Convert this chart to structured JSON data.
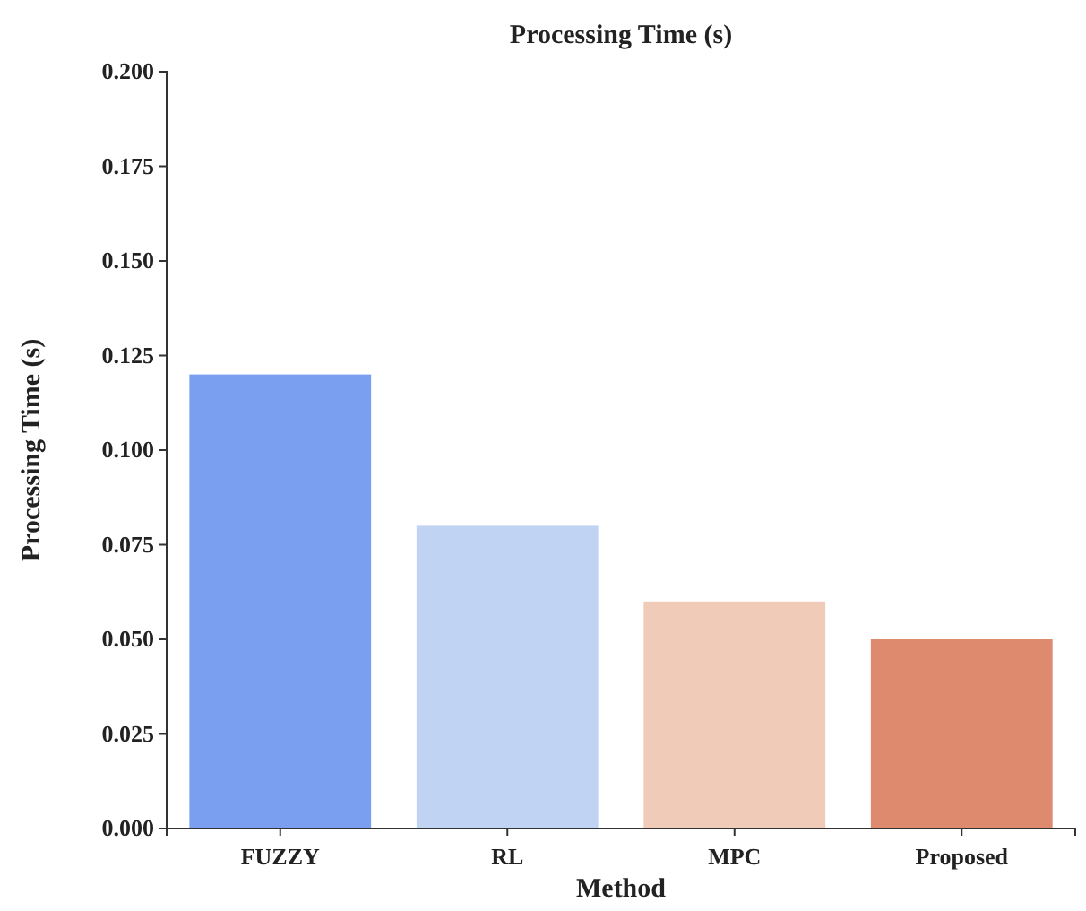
{
  "chart_data": {
    "type": "bar",
    "title": "Processing Time (s)",
    "xlabel": "Method",
    "ylabel": "Processing Time (s)",
    "categories": [
      "FUZZY",
      "RL",
      "MPC",
      "Proposed"
    ],
    "values": [
      0.12,
      0.08,
      0.06,
      0.05
    ],
    "colors": [
      "#7b9ff0",
      "#c0d3f3",
      "#f0cbb8",
      "#de8a6f"
    ],
    "ylim": [
      0,
      0.2
    ],
    "yticks": [
      {
        "value": 0,
        "label": "0.000"
      },
      {
        "value": 0.025,
        "label": "0.025"
      },
      {
        "value": 0.05,
        "label": "0.050"
      },
      {
        "value": 0.075,
        "label": "0.075"
      },
      {
        "value": 0.1,
        "label": "0.100"
      },
      {
        "value": 0.125,
        "label": "0.125"
      },
      {
        "value": 0.15,
        "label": "0.150"
      },
      {
        "value": 0.175,
        "label": "0.175"
      },
      {
        "value": 0.2,
        "label": "0.200"
      }
    ],
    "grid": false
  }
}
